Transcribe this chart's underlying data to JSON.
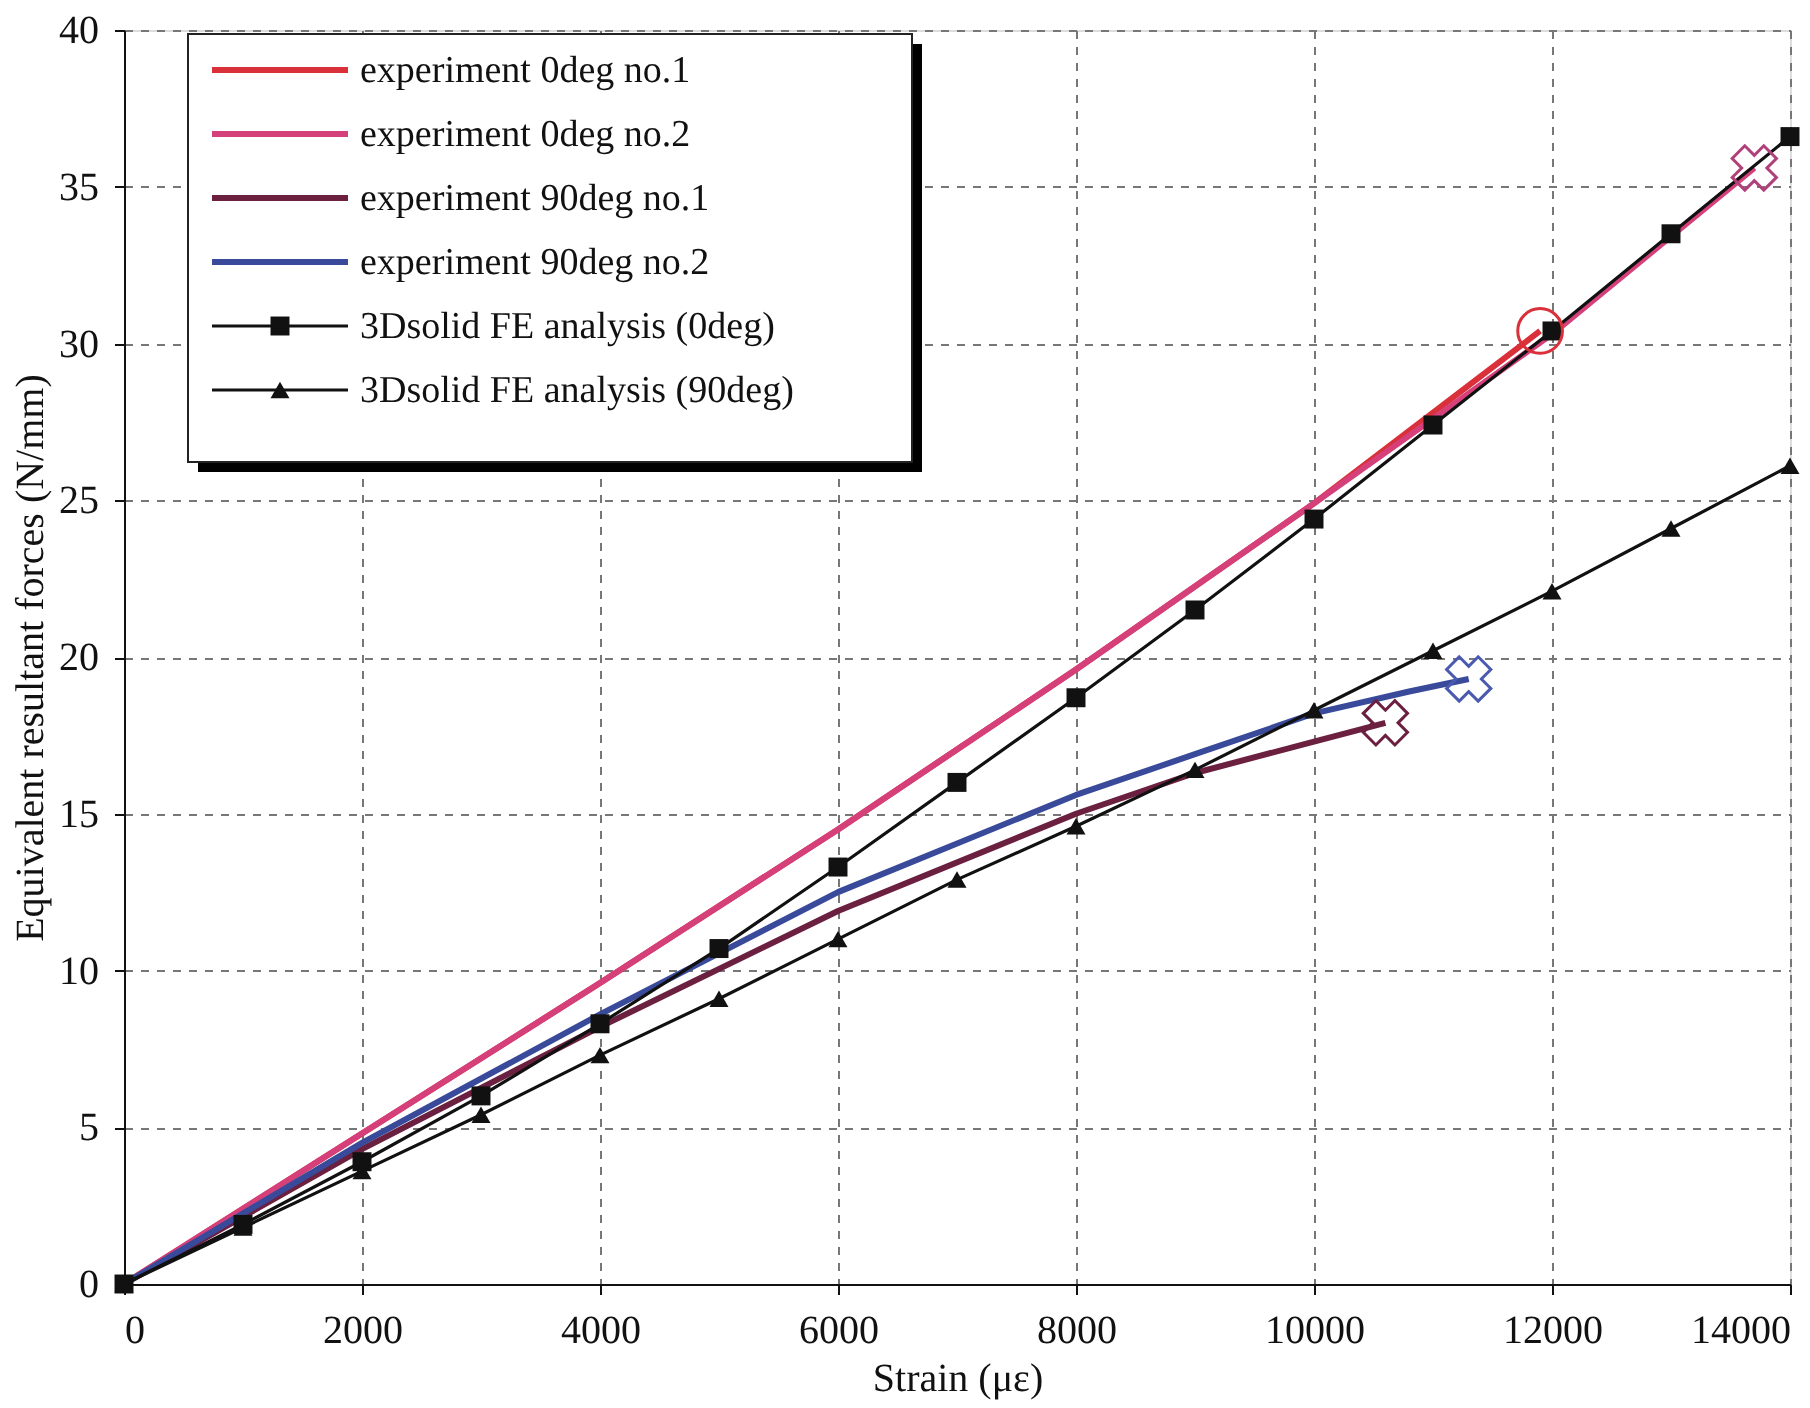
{
  "chart_data": {
    "type": "line",
    "xlabel": "Strain (με)",
    "ylabel": "Equivalent resultant forces (N/mm)",
    "xlim": [
      0,
      14000
    ],
    "xticks": [
      0,
      2000,
      4000,
      6000,
      8000,
      10000,
      12000,
      14000
    ],
    "ylim": [
      0,
      40
    ],
    "yticks": [
      0,
      5,
      10,
      15,
      20,
      25,
      30,
      35,
      40
    ],
    "grid": true,
    "legend": "top left",
    "series": [
      {
        "name": "experiment 0deg no.1",
        "color": "#d9303a",
        "marker": "none",
        "x": [
          0,
          2000,
          4000,
          6000,
          8000,
          10000,
          11900
        ],
        "values": [
          0,
          4.8,
          9.6,
          14.5,
          19.6,
          24.9,
          30.4
        ]
      },
      {
        "name": "experiment 0deg no.2",
        "color": "#d6407a",
        "marker": "none",
        "x": [
          0,
          2000,
          4000,
          6000,
          8000,
          10000,
          12000,
          13700
        ],
        "values": [
          0,
          4.8,
          9.6,
          14.5,
          19.6,
          24.9,
          30.3,
          35.6
        ]
      },
      {
        "name": "experiment 90deg no.1",
        "color": "#6b2040",
        "marker": "none",
        "x": [
          0,
          2000,
          4000,
          6000,
          8000,
          9000,
          10000,
          10600
        ],
        "values": [
          0,
          4.3,
          8.2,
          11.9,
          15.0,
          16.3,
          17.3,
          17.9
        ]
      },
      {
        "name": "experiment 90deg no.2",
        "color": "#3a4a9a",
        "marker": "none",
        "x": [
          0,
          2000,
          4000,
          6000,
          8000,
          9000,
          10000,
          10800,
          11300
        ],
        "values": [
          0,
          4.5,
          8.6,
          12.5,
          15.6,
          16.9,
          18.2,
          18.9,
          19.3
        ]
      },
      {
        "name": "3Dsolid FE analysis (0deg)",
        "color": "#111111",
        "marker": "square",
        "x": [
          0,
          1000,
          2000,
          3000,
          4000,
          5000,
          6000,
          7000,
          8000,
          9000,
          10000,
          11000,
          12000,
          13000,
          14000
        ],
        "values": [
          0,
          1.9,
          3.9,
          6.0,
          8.3,
          10.7,
          13.3,
          16.0,
          18.7,
          21.5,
          24.4,
          27.4,
          30.4,
          33.5,
          36.6
        ]
      },
      {
        "name": "3Dsolid FE analysis (90deg)",
        "color": "#111111",
        "marker": "triangle",
        "x": [
          0,
          1000,
          2000,
          3000,
          4000,
          5000,
          6000,
          7000,
          8000,
          9000,
          10000,
          11000,
          12000,
          13000,
          14000
        ],
        "values": [
          0,
          1.8,
          3.6,
          5.4,
          7.3,
          9.1,
          11.0,
          12.9,
          14.6,
          16.4,
          18.3,
          20.2,
          22.1,
          24.1,
          26.1
        ]
      },
      {
        "color": "#d9303a",
        "type": "scatter",
        "marker": "circle",
        "x": [
          11900
        ],
        "values": [
          30.4
        ]
      },
      {
        "color": "#b0407a",
        "type": "scatter",
        "marker": "cross",
        "x": [
          13700
        ],
        "values": [
          35.6
        ]
      },
      {
        "color": "#6b2040",
        "type": "scatter",
        "marker": "cross",
        "x": [
          10600
        ],
        "values": [
          17.9
        ]
      },
      {
        "color": "#4a5ab0",
        "type": "scatter",
        "marker": "cross",
        "x": [
          11300
        ],
        "values": [
          19.3
        ]
      }
    ]
  }
}
